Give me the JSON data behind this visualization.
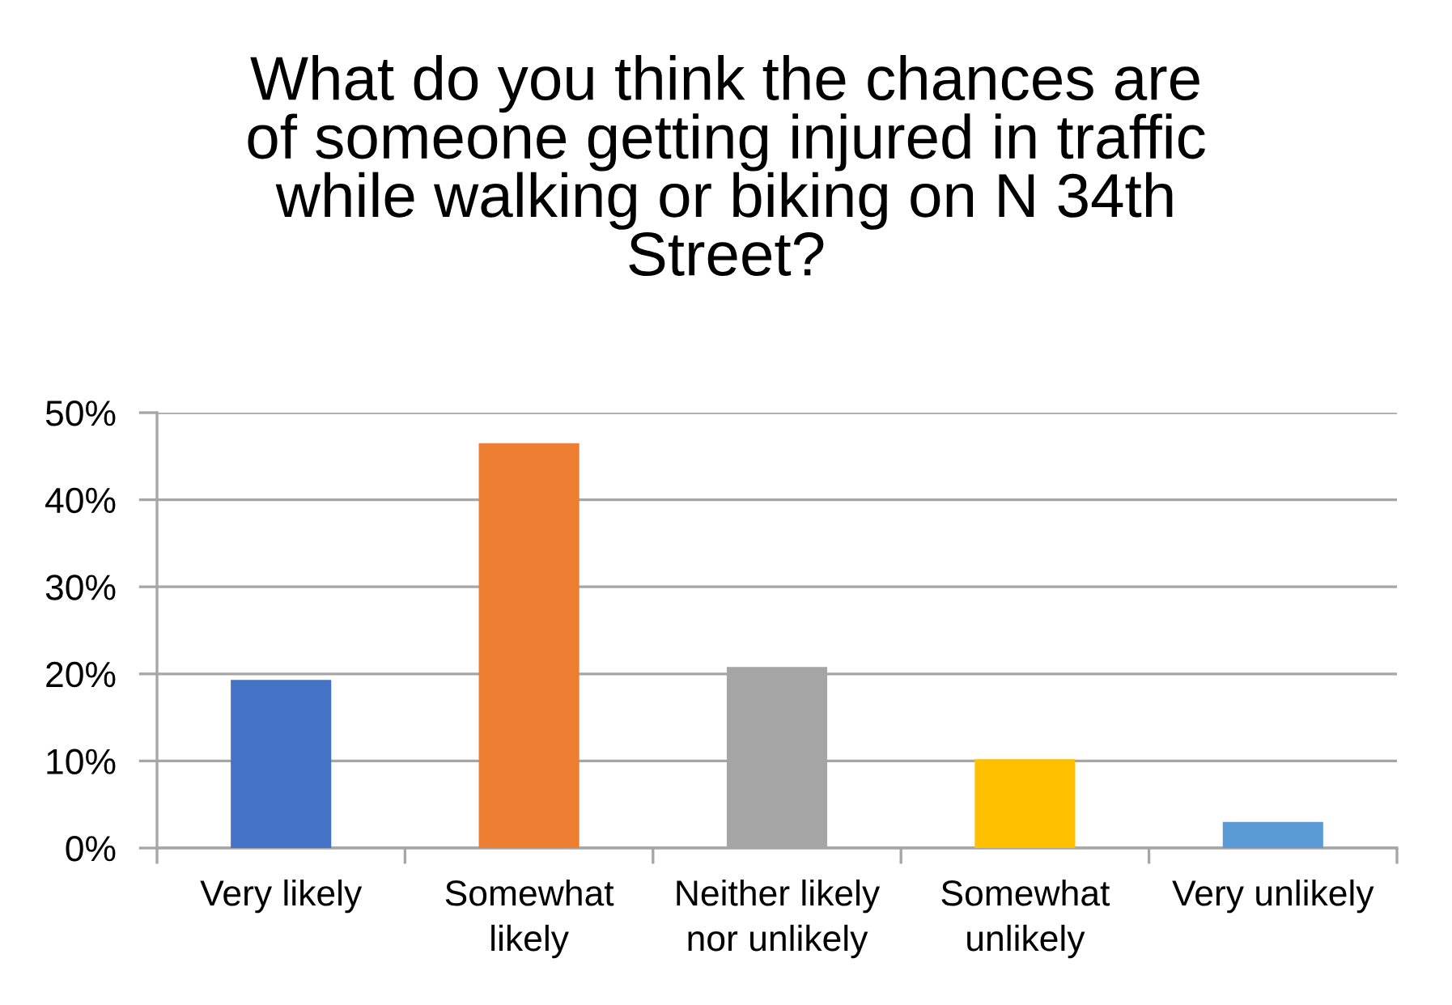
{
  "chart_data": {
    "type": "bar",
    "title": "What do you think the chances are\nof someone getting injured in traffic\nwhile walking or biking on N 34th\nStreet?",
    "categories": [
      "Very likely",
      "Somewhat\nlikely",
      "Neither likely\nnor unlikely",
      "Somewhat\nunlikely",
      "Very unlikely"
    ],
    "values": [
      19.3,
      46.5,
      20.8,
      10.2,
      3.0
    ],
    "colors": [
      "#4472c4",
      "#ed7d31",
      "#a5a5a5",
      "#ffc000",
      "#5b9bd5"
    ],
    "ylim": [
      0,
      50
    ],
    "yticks": [
      {
        "value": 0,
        "label": "0%"
      },
      {
        "value": 10,
        "label": "10%"
      },
      {
        "value": 20,
        "label": "20%"
      },
      {
        "value": 30,
        "label": "30%"
      },
      {
        "value": 40,
        "label": "40%"
      },
      {
        "value": 50,
        "label": "50%"
      }
    ],
    "grid": "y"
  }
}
